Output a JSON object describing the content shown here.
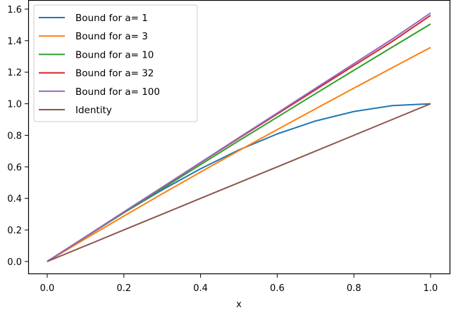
{
  "chart_data": {
    "type": "line",
    "title": "",
    "xlabel": "x",
    "ylabel": "",
    "xlim": [
      -0.05,
      1.05
    ],
    "ylim": [
      -0.08,
      1.65
    ],
    "grid": false,
    "legend_position": "upper left",
    "x_ticks": [
      "0.0",
      "0.2",
      "0.4",
      "0.6",
      "0.8",
      "1.0"
    ],
    "y_ticks": [
      "0.0",
      "0.2",
      "0.4",
      "0.6",
      "0.8",
      "1.0",
      "1.2",
      "1.4",
      "1.6"
    ],
    "x": [
      0.0,
      0.1,
      0.2,
      0.3,
      0.4,
      0.5,
      0.6,
      0.7,
      0.8,
      0.9,
      1.0
    ],
    "series": [
      {
        "name": "Bound for a= 1",
        "color": "#1f77b4",
        "values": [
          0.0,
          0.156,
          0.309,
          0.454,
          0.588,
          0.707,
          0.809,
          0.891,
          0.951,
          0.988,
          1.0
        ]
      },
      {
        "name": "Bound for a= 3",
        "color": "#ff7f0e",
        "values": [
          0.0,
          0.145,
          0.288,
          0.429,
          0.567,
          0.703,
          0.836,
          0.968,
          1.099,
          1.228,
          1.357
        ]
      },
      {
        "name": "Bound for a= 10",
        "color": "#2ca02c",
        "values": [
          0.0,
          0.155,
          0.309,
          0.462,
          0.614,
          0.766,
          0.915,
          1.064,
          1.212,
          1.359,
          1.506
        ]
      },
      {
        "name": "Bound for a= 32",
        "color": "#d62728",
        "values": [
          0.0,
          0.157,
          0.314,
          0.47,
          0.626,
          0.781,
          0.935,
          1.089,
          1.242,
          1.395,
          1.56
        ]
      },
      {
        "name": "Bound for a= 100",
        "color": "#9467bd",
        "values": [
          0.0,
          0.157,
          0.314,
          0.471,
          0.628,
          0.785,
          0.941,
          1.098,
          1.254,
          1.41,
          1.575
        ]
      },
      {
        "name": "Identity",
        "color": "#8c564b",
        "values": [
          0.0,
          0.1,
          0.2,
          0.3,
          0.4,
          0.5,
          0.6,
          0.7,
          0.8,
          0.9,
          1.0
        ]
      }
    ]
  }
}
